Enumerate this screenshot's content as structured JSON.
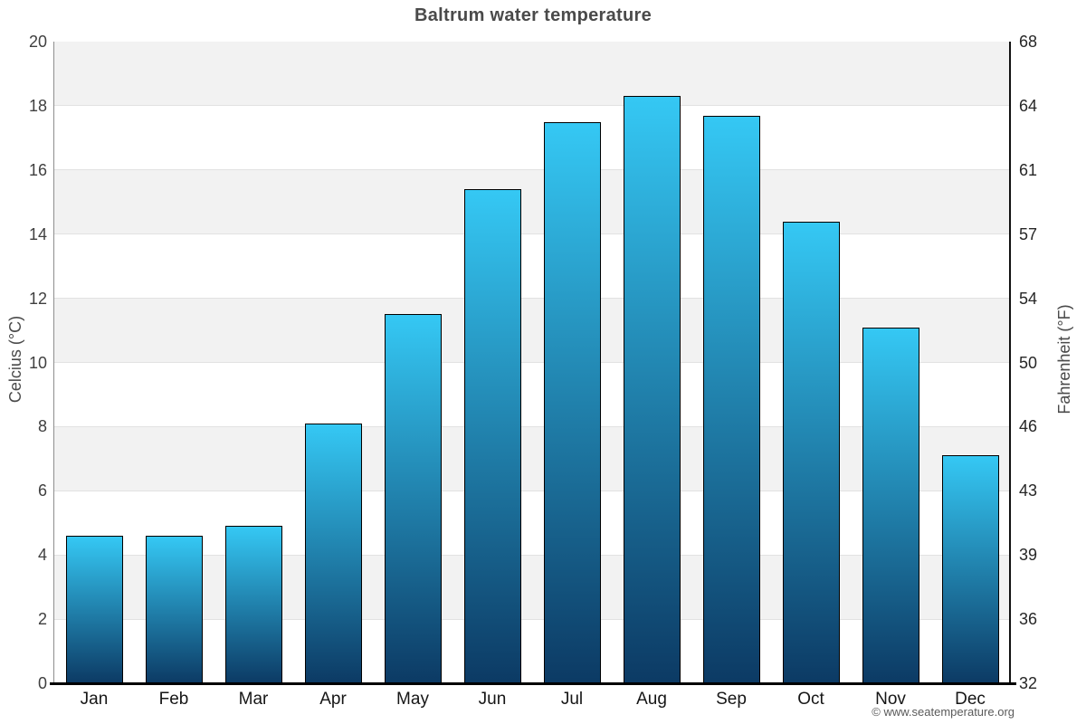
{
  "header": {
    "title": "Baltrum water temperature"
  },
  "footer": {
    "copyright": "© www.seatemperature.org"
  },
  "chart_data": {
    "type": "bar",
    "title": "Baltrum water temperature",
    "categories": [
      "Jan",
      "Feb",
      "Mar",
      "Apr",
      "May",
      "Jun",
      "Jul",
      "Aug",
      "Sep",
      "Oct",
      "Nov",
      "Dec"
    ],
    "values": [
      4.6,
      4.6,
      4.9,
      8.1,
      11.5,
      15.4,
      17.5,
      18.3,
      17.7,
      14.4,
      11.1,
      7.1
    ],
    "ylabel_left": "Celcius (°C)",
    "ylabel_right": "Fahrenheit (°F)",
    "ylim": [
      0,
      20
    ],
    "yticks_left": [
      0,
      2,
      4,
      6,
      8,
      10,
      12,
      14,
      16,
      18,
      20
    ],
    "yticks_right": [
      32,
      36,
      39,
      43,
      46,
      50,
      54,
      57,
      61,
      64,
      68
    ],
    "legend": "none",
    "grid": "alternating horizontal bands every 2 degrees",
    "colors": {
      "bar_gradient_top": "#35c8f4",
      "bar_gradient_bottom": "#0c3a64",
      "bar_border": "#000000",
      "band_gray": "#f2f2f2",
      "band_white": "#ffffff",
      "gridline": "#e2e2e2",
      "axis_left_line": "#8e8e8e",
      "axis_right_line": "#111111",
      "axis_bottom_line": "#000000",
      "title_color": "#4a4a4a",
      "tick_color": "#3f3f3f",
      "copyright_color": "#5a5a5a"
    }
  }
}
